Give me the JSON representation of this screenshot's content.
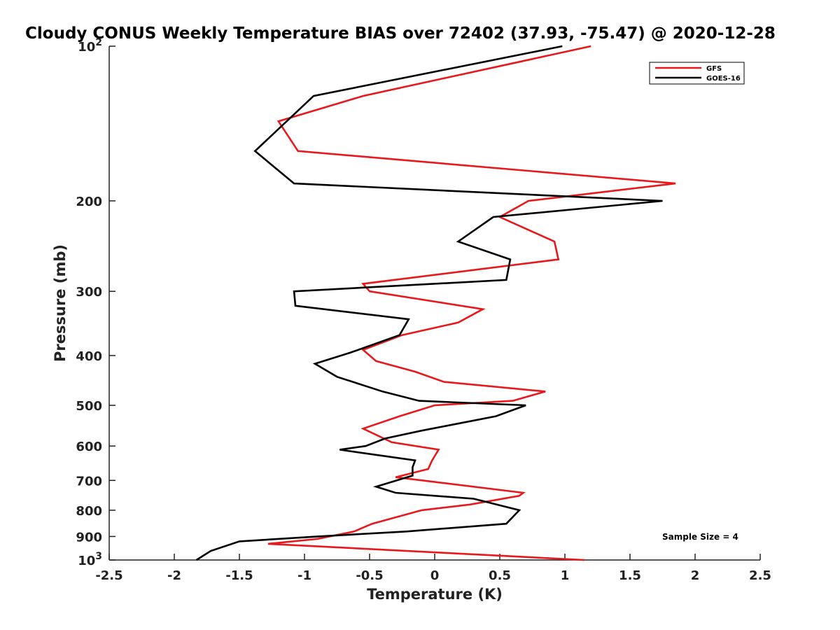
{
  "chart_data": {
    "type": "line",
    "title": "Cloudy CONUS Weekly Temperature BIAS over 72402 (37.93, -75.47) @ 2020-12-28",
    "xlabel": "Temperature (K)",
    "ylabel": "Pressure (mb)",
    "xlim": [
      -2.5,
      2.5
    ],
    "ylim": [
      100,
      1000
    ],
    "y_scale": "log",
    "y_reversed": true,
    "grid": false,
    "legend_position": "top-right",
    "x_ticks": [
      -2.5,
      -2,
      -1.5,
      -1,
      -0.5,
      0,
      0.5,
      1,
      1.5,
      2,
      2.5
    ],
    "x_tick_labels": [
      "-2.5",
      "-2",
      "-1.5",
      "-1",
      "-0.5",
      "0",
      "0.5",
      "1",
      "1.5",
      "2",
      "2.5"
    ],
    "y_ticks": [
      100,
      200,
      300,
      400,
      500,
      600,
      700,
      800,
      900,
      1000
    ],
    "y_tick_labels": [
      {
        "base": "10",
        "exp": "2"
      },
      {
        "base": "200",
        "exp": ""
      },
      {
        "base": "300",
        "exp": ""
      },
      {
        "base": "400",
        "exp": ""
      },
      {
        "base": "500",
        "exp": ""
      },
      {
        "base": "600",
        "exp": ""
      },
      {
        "base": "700",
        "exp": ""
      },
      {
        "base": "800",
        "exp": ""
      },
      {
        "base": "900",
        "exp": ""
      },
      {
        "base": "10",
        "exp": "3"
      }
    ],
    "annotation": "Sample Size = 4",
    "series": [
      {
        "name": "GFS",
        "color": "#e8191d",
        "pressure": [
          100,
          125,
          140,
          160,
          185,
          200,
          215,
          240,
          260,
          290,
          300,
          325,
          345,
          365,
          390,
          410,
          430,
          450,
          470,
          490,
          500,
          525,
          555,
          590,
          610,
          640,
          665,
          690,
          740,
          750,
          780,
          800,
          850,
          880,
          910,
          930,
          1000
        ],
        "values": [
          1.2,
          -0.55,
          -1.2,
          -1.05,
          1.85,
          0.72,
          0.5,
          0.92,
          0.95,
          -0.55,
          -0.5,
          0.37,
          0.18,
          -0.25,
          -0.55,
          -0.45,
          -0.15,
          0.07,
          0.85,
          0.6,
          0.0,
          -0.27,
          -0.55,
          -0.33,
          0.03,
          -0.02,
          -0.05,
          -0.3,
          0.68,
          0.65,
          0.27,
          -0.1,
          -0.48,
          -0.62,
          -0.9,
          -1.28,
          1.15
        ]
      },
      {
        "name": "GOES-16",
        "color": "#000000",
        "pressure": [
          100,
          125,
          160,
          185,
          200,
          215,
          240,
          260,
          285,
          300,
          320,
          340,
          365,
          395,
          415,
          440,
          470,
          490,
          500,
          525,
          560,
          580,
          600,
          610,
          640,
          660,
          685,
          720,
          740,
          760,
          800,
          850,
          880,
          900,
          920,
          960,
          1000
        ],
        "values": [
          0.98,
          -0.93,
          -1.38,
          -1.08,
          1.75,
          0.45,
          0.18,
          0.58,
          0.55,
          -1.08,
          -1.07,
          -0.2,
          -0.27,
          -0.65,
          -0.92,
          -0.75,
          -0.4,
          -0.12,
          0.7,
          0.47,
          -0.1,
          -0.38,
          -0.53,
          -0.73,
          -0.15,
          -0.17,
          -0.17,
          -0.45,
          -0.3,
          0.3,
          0.65,
          0.55,
          -0.22,
          -0.9,
          -1.5,
          -1.72,
          -1.83
        ]
      }
    ]
  }
}
